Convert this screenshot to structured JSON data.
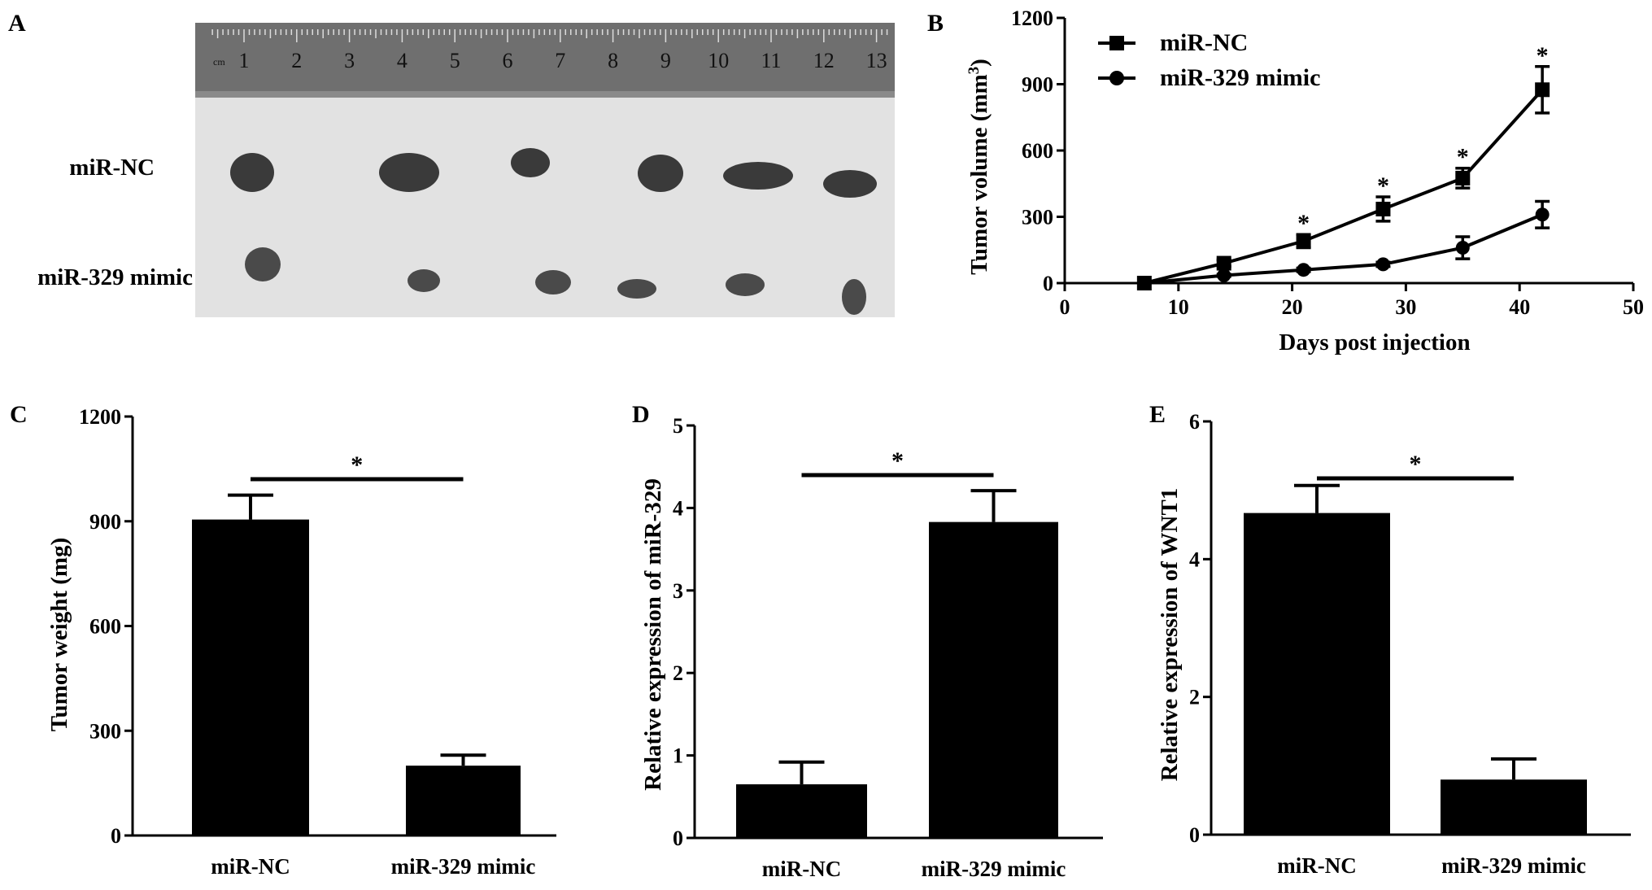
{
  "panels": {
    "A": {
      "letter": "A",
      "rows": [
        "miR-NC",
        "miR-329 mimic"
      ],
      "ruler_numbers": [
        "1",
        "2",
        "3",
        "4",
        "5",
        "6",
        "7",
        "8",
        "9",
        "10",
        "11",
        "12",
        "13"
      ],
      "ruler_unit": "cm"
    },
    "B": {
      "letter": "B"
    },
    "C": {
      "letter": "C"
    },
    "D": {
      "letter": "D"
    },
    "E": {
      "letter": "E"
    }
  },
  "chart_data": [
    {
      "panel": "B",
      "type": "line",
      "xlabel": "Days post injection",
      "ylabel": "Tumor volume (mm3)",
      "xlim": [
        0,
        50
      ],
      "ylim": [
        0,
        1200
      ],
      "xticks": [
        0,
        10,
        20,
        30,
        40,
        50
      ],
      "yticks": [
        0,
        300,
        600,
        900,
        1200
      ],
      "legend_position": "top-left",
      "x": [
        7,
        14,
        21,
        28,
        35,
        42
      ],
      "series": [
        {
          "name": "miR-NC",
          "marker": "square",
          "values": [
            0,
            90,
            190,
            335,
            475,
            875
          ],
          "errors": [
            0,
            15,
            30,
            55,
            45,
            105
          ]
        },
        {
          "name": "miR-329 mimic",
          "marker": "circle",
          "values": [
            0,
            35,
            60,
            85,
            160,
            310
          ],
          "errors": [
            0,
            5,
            8,
            10,
            50,
            60
          ]
        }
      ],
      "significance": {
        "label": "*",
        "x": [
          21,
          28,
          35,
          42
        ]
      }
    },
    {
      "panel": "C",
      "type": "bar",
      "categories": [
        "miR-NC",
        "miR-329 mimic"
      ],
      "values": [
        905,
        200
      ],
      "errors": [
        70,
        30
      ],
      "ylabel": "Tumor weight (mg)",
      "ylim": [
        0,
        1200
      ],
      "yticks": [
        0,
        300,
        600,
        900,
        1200
      ],
      "significance": "*"
    },
    {
      "panel": "D",
      "type": "bar",
      "categories": [
        "miR-NC",
        "miR-329 mimic"
      ],
      "values": [
        0.65,
        3.83
      ],
      "errors": [
        0.27,
        0.38
      ],
      "ylabel": "Relative expression of miR-329",
      "ylim": [
        0,
        5
      ],
      "yticks": [
        0,
        1,
        2,
        3,
        4,
        5
      ],
      "significance": "*"
    },
    {
      "panel": "E",
      "type": "bar",
      "categories": [
        "miR-NC",
        "miR-329 mimic"
      ],
      "values": [
        4.67,
        0.8
      ],
      "errors": [
        0.4,
        0.3
      ],
      "ylabel": "Relative expression of WNT1",
      "ylim": [
        0,
        6
      ],
      "yticks": [
        0,
        2,
        4,
        6
      ],
      "significance": "*"
    }
  ]
}
